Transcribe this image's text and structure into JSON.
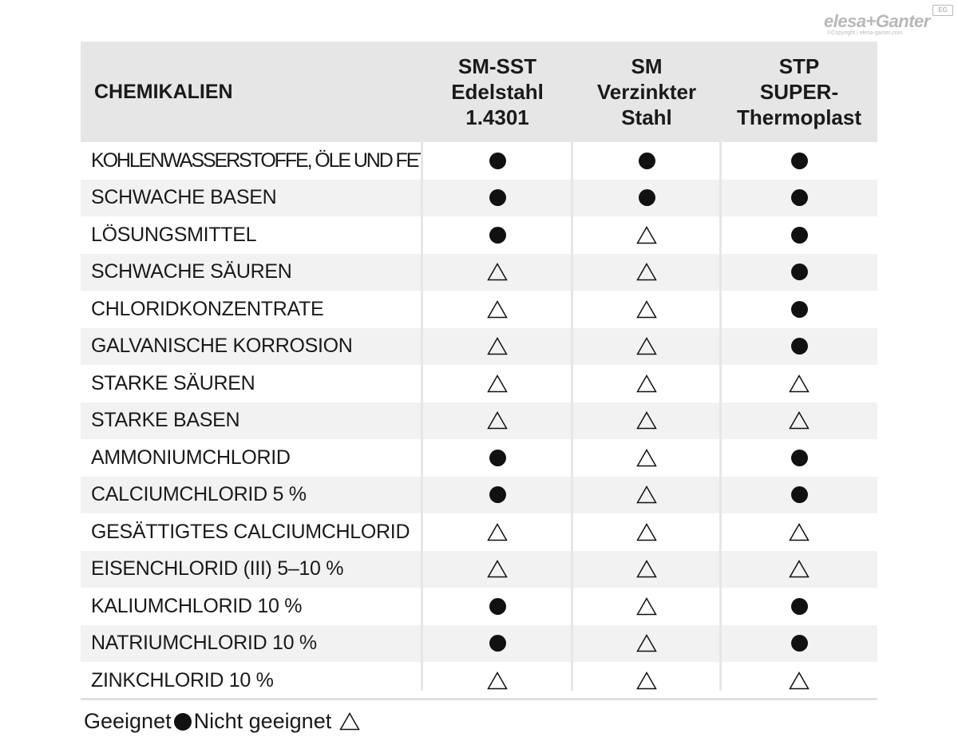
{
  "logo": {
    "text": "elesa+Ganter",
    "badge": "EG",
    "copyright": "©Copyright | elesa-ganter.com"
  },
  "table": {
    "header": {
      "chemicals": "CHEMIKALIEN",
      "columns": [
        [
          "SM-SST",
          "Edelstahl",
          "1.4301"
        ],
        [
          "SM",
          "Verzinkter",
          "Stahl"
        ],
        [
          "STP",
          "SUPER-",
          "Thermoplast"
        ]
      ]
    },
    "rows": [
      {
        "name": "KOHLENWASSERSTOFFE, ÖLE UND FETTE",
        "values": [
          "suitable",
          "suitable",
          "suitable"
        ]
      },
      {
        "name": "SCHWACHE BASEN",
        "values": [
          "suitable",
          "suitable",
          "suitable"
        ]
      },
      {
        "name": "LÖSUNGSMITTEL",
        "values": [
          "suitable",
          "not_suitable",
          "suitable"
        ]
      },
      {
        "name": "SCHWACHE SÄUREN",
        "values": [
          "not_suitable",
          "not_suitable",
          "suitable"
        ]
      },
      {
        "name": "CHLORIDKONZENTRATE",
        "values": [
          "not_suitable",
          "not_suitable",
          "suitable"
        ]
      },
      {
        "name": "GALVANISCHE KORROSION",
        "values": [
          "not_suitable",
          "not_suitable",
          "suitable"
        ]
      },
      {
        "name": "STARKE SÄUREN",
        "values": [
          "not_suitable",
          "not_suitable",
          "not_suitable"
        ]
      },
      {
        "name": "STARKE BASEN",
        "values": [
          "not_suitable",
          "not_suitable",
          "not_suitable"
        ]
      },
      {
        "name": "AMMONIUMCHLORID",
        "values": [
          "suitable",
          "not_suitable",
          "suitable"
        ]
      },
      {
        "name": "CALCIUMCHLORID 5 %",
        "values": [
          "suitable",
          "not_suitable",
          "suitable"
        ]
      },
      {
        "name": "GESÄTTIGTES CALCIUMCHLORID",
        "values": [
          "not_suitable",
          "not_suitable",
          "not_suitable"
        ]
      },
      {
        "name": "EISENCHLORID (III) 5–10 %",
        "values": [
          "not_suitable",
          "not_suitable",
          "not_suitable"
        ]
      },
      {
        "name": "KALIUMCHLORID 10 %",
        "values": [
          "suitable",
          "not_suitable",
          "suitable"
        ]
      },
      {
        "name": "NATRIUMCHLORID 10 %",
        "values": [
          "suitable",
          "not_suitable",
          "suitable"
        ]
      },
      {
        "name": "ZINKCHLORID 10 %",
        "values": [
          "not_suitable",
          "not_suitable",
          "not_suitable"
        ]
      }
    ]
  },
  "legend": {
    "suitable_label": "Geeignet",
    "not_suitable_label": "Nicht geeignet",
    "suitable_icon": "filled-circle-icon",
    "not_suitable_icon": "outline-triangle-icon"
  },
  "colors": {
    "header_bg": "#e6e6e6",
    "alt_row_bg": "#f2f2f2",
    "mark": "#111111"
  }
}
